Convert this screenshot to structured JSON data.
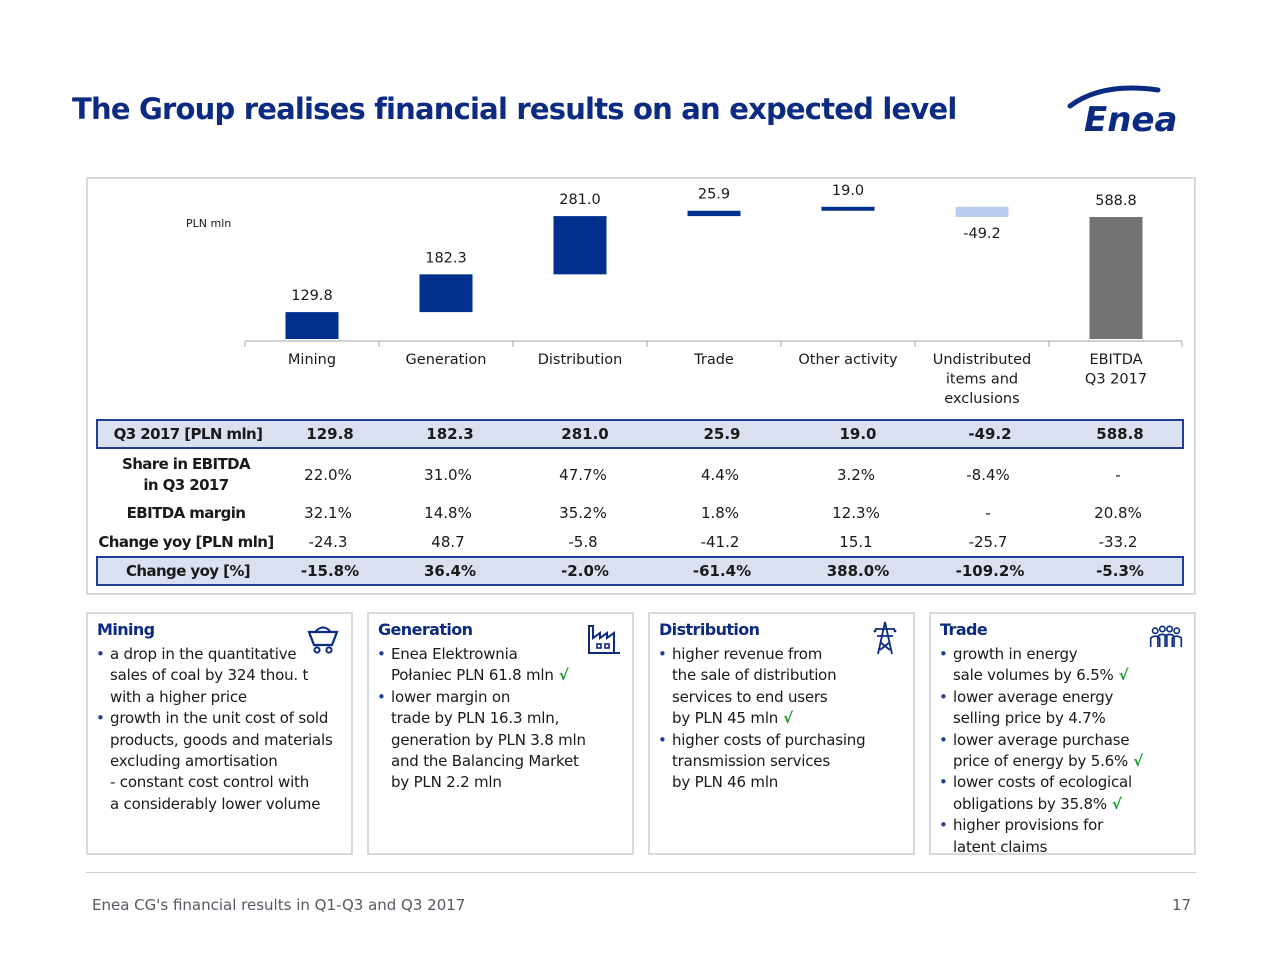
{
  "title": "The Group realises financial results on an expected level",
  "logo_text": "Enea",
  "colors": {
    "navy": "#002f8e",
    "light_blue": "#b9cdf2",
    "gray": "#707274",
    "check": "#1a9a2a"
  },
  "chart_data": {
    "type": "bar",
    "subtype": "waterfall",
    "unit_label": "PLN mln",
    "categories": [
      "Mining",
      "Generation",
      "Distribution",
      "Trade",
      "Other activity",
      "Undistributed items and exclusions",
      "EBITDA Q3 2017"
    ],
    "category_lines": [
      [
        "Mining"
      ],
      [
        "Generation"
      ],
      [
        "Distribution"
      ],
      [
        "Trade"
      ],
      [
        "Other activity"
      ],
      [
        "Undistributed",
        "items and",
        "exclusions"
      ],
      [
        "EBITDA",
        "Q3 2017"
      ]
    ],
    "values": [
      129.8,
      182.3,
      281.0,
      25.9,
      19.0,
      -49.2,
      588.8
    ],
    "value_labels": [
      "129.8",
      "182.3",
      "281.0",
      "25.9",
      "19.0",
      "-49.2",
      "588.8"
    ],
    "ylim": [
      0,
      637.9
    ]
  },
  "table": {
    "rows": [
      {
        "label": "Q3 2017 [PLN mln]",
        "values": [
          "129.8",
          "182.3",
          "281.0",
          "25.9",
          "19.0",
          "-49.2",
          "588.8"
        ],
        "boxed": true
      },
      {
        "label_lines": [
          "Share in EBITDA",
          "in Q3 2017"
        ],
        "values": [
          "22.0%",
          "31.0%",
          "47.7%",
          "4.4%",
          "3.2%",
          "-8.4%",
          "-"
        ],
        "boxed": false
      },
      {
        "label": "EBITDA margin",
        "values": [
          "32.1%",
          "14.8%",
          "35.2%",
          "1.8%",
          "12.3%",
          "-",
          "20.8%"
        ],
        "boxed": false
      },
      {
        "label": "Change yoy [PLN mln]",
        "values": [
          "-24.3",
          "48.7",
          "-5.8",
          "-41.2",
          "15.1",
          "-25.7",
          "-33.2"
        ],
        "boxed": false
      },
      {
        "label": "Change yoy [%]",
        "values": [
          "-15.8%",
          "36.4%",
          "-2.0%",
          "-61.4%",
          "388.0%",
          "-109.2%",
          "-5.3%"
        ],
        "boxed": true
      }
    ]
  },
  "panels": [
    {
      "title": "Mining",
      "icon": "mine-cart-icon",
      "lines": [
        {
          "text": "a drop in the quantitative",
          "bullet": true
        },
        {
          "text": "sales of coal by 324 thou. t"
        },
        {
          "text": "with a higher price"
        },
        {
          "text": "growth in the unit cost of sold",
          "bullet": true
        },
        {
          "text": "products, goods and materials"
        },
        {
          "text": "excluding amortisation"
        },
        {
          "text": "- constant cost control with"
        },
        {
          "text": "a considerably lower volume"
        }
      ]
    },
    {
      "title": "Generation",
      "icon": "factory-icon",
      "lines": [
        {
          "text": "Enea Elektrownia",
          "bullet": true
        },
        {
          "text": "Połaniec PLN 61.8 mln",
          "check": "√"
        },
        {
          "text": "lower margin on",
          "bullet": true
        },
        {
          "text": "trade by PLN 16.3 mln,"
        },
        {
          "text": "generation by PLN 3.8 mln"
        },
        {
          "text": "and the Balancing Market"
        },
        {
          "text": "by PLN 2.2 mln"
        }
      ]
    },
    {
      "title": "Distribution",
      "icon": "power-pylon-icon",
      "lines": [
        {
          "text": "higher revenue from",
          "bullet": true
        },
        {
          "text": "the sale of distribution"
        },
        {
          "text": "services to end users"
        },
        {
          "text": "by PLN 45 mln",
          "check": "√"
        },
        {
          "text": "higher costs of purchasing",
          "bullet": true
        },
        {
          "text": "transmission services"
        },
        {
          "text": "by PLN 46 mln"
        }
      ]
    },
    {
      "title": "Trade",
      "icon": "customers-group-icon",
      "lines": [
        {
          "text": "growth in energy",
          "bullet": true
        },
        {
          "text": "sale volumes by 6.5%",
          "check": "√"
        },
        {
          "text": "lower average energy",
          "bullet": true
        },
        {
          "text": "selling price by 4.7%"
        },
        {
          "text": "lower average purchase",
          "bullet": true
        },
        {
          "text": "price of energy by 5.6%",
          "check": "√"
        },
        {
          "text": "lower costs of ecological",
          "bullet": true
        },
        {
          "text": "obligations by 35.8%",
          "check": "√"
        },
        {
          "text": "higher provisions for",
          "bullet": true
        },
        {
          "text": "latent claims"
        }
      ]
    }
  ],
  "footer": {
    "text": "Enea CG's financial results in Q1-Q3 and Q3 2017",
    "page": "17"
  }
}
